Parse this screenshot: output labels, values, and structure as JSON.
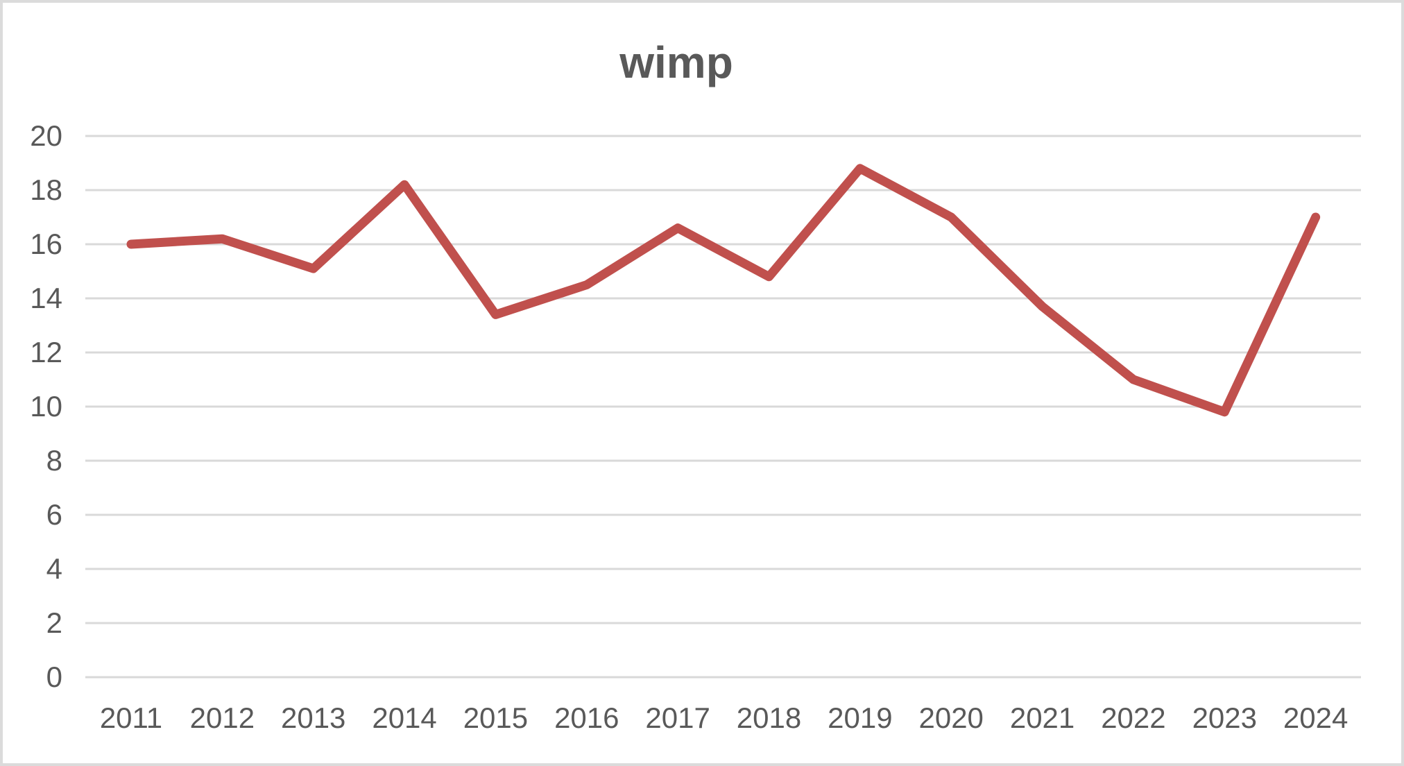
{
  "chart_data": {
    "type": "line",
    "title": "wimp",
    "categories": [
      "2011",
      "2012",
      "2013",
      "2014",
      "2015",
      "2016",
      "2017",
      "2018",
      "2019",
      "2020",
      "2021",
      "2022",
      "2023",
      "2024"
    ],
    "series": [
      {
        "name": "wimp",
        "values": [
          16.0,
          16.2,
          15.1,
          18.2,
          13.4,
          14.5,
          16.6,
          14.8,
          18.8,
          17.0,
          13.7,
          11.0,
          9.8,
          17.0
        ],
        "color": "#c0504d"
      }
    ],
    "xlabel": "",
    "ylabel": "",
    "ylim": [
      0,
      20
    ],
    "ytick_step": 2,
    "yticks": [
      0,
      2,
      4,
      6,
      8,
      10,
      12,
      14,
      16,
      18,
      20
    ],
    "grid": "horizontal",
    "legend": "none",
    "colors": {
      "gridline": "#d9d9d9",
      "axis_text": "#595959",
      "title_text": "#595959",
      "frame_border": "#dbdbdb",
      "background": "#ffffff"
    }
  }
}
